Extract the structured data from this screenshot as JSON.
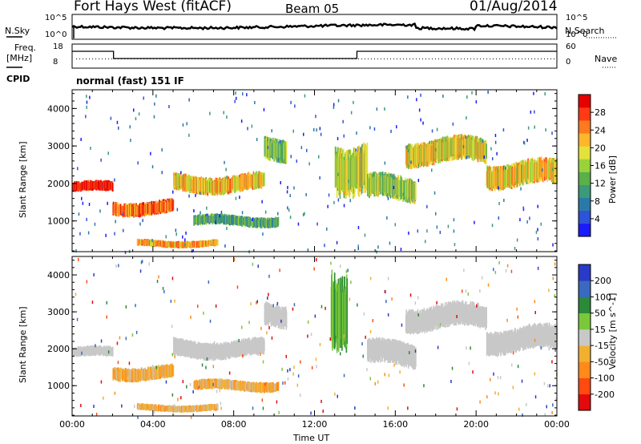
{
  "header": {
    "station": "Fort Hays West (fitACF)",
    "beam": "Beam 05",
    "date": "01/Aug/2014"
  },
  "top_panels": {
    "nsky_label": "N.Sky",
    "nsearch_label": "N.Search",
    "freq_label_1": "Freq.",
    "freq_label_2": "[MHz]",
    "nave_label": "Nave",
    "cpid_label": "CPID",
    "cpid_value": "normal (fast) 151 IF",
    "noise_ticks": {
      "top": "10^5",
      "bottom": "10^0"
    },
    "freq_ticks": {
      "top": "18",
      "bottom": "8"
    },
    "nave_ticks": {
      "top": "60",
      "bottom": "0"
    }
  },
  "chart_data": [
    {
      "type": "heatmap",
      "panel": "power",
      "title": "",
      "ylabel": "Slant Range [km]",
      "xlabel": "",
      "ylim": [
        180,
        4500
      ],
      "yticks": [
        "1000",
        "2000",
        "3000",
        "4000"
      ],
      "colorbar": {
        "label": "Power [dB]",
        "ticks": [
          "4",
          "8",
          "12",
          "16",
          "20",
          "24",
          "28"
        ],
        "colors": [
          "#1a1aff",
          "#2e52d8",
          "#2a7aa8",
          "#3a9a7a",
          "#5ab04a",
          "#9ad23a",
          "#e2e23a",
          "#ffb62a",
          "#ff7a1e",
          "#ff3a14",
          "#e60000"
        ]
      },
      "bands": [
        {
          "t": [
            0.0,
            2.0
          ],
          "range": [
            1750,
            2050
          ],
          "level": 0.95
        },
        {
          "t": [
            2.0,
            5.0
          ],
          "range": [
            1150,
            1550
          ],
          "level": 0.8
        },
        {
          "t": [
            5.0,
            9.5
          ],
          "range": [
            1750,
            2250
          ],
          "level": 0.65
        },
        {
          "t": [
            9.5,
            10.6
          ],
          "range": [
            2600,
            3250
          ],
          "level": 0.45
        },
        {
          "t": [
            3.2,
            7.2
          ],
          "range": [
            300,
            500
          ],
          "level": 0.7
        },
        {
          "t": [
            6.0,
            10.2
          ],
          "range": [
            850,
            1150
          ],
          "level": 0.35
        },
        {
          "t": [
            13.0,
            14.6
          ],
          "range": [
            1800,
            3200
          ],
          "level": 0.55
        },
        {
          "t": [
            14.6,
            17.0
          ],
          "range": [
            1500,
            2200
          ],
          "level": 0.5
        },
        {
          "t": [
            16.5,
            20.5
          ],
          "range": [
            2500,
            3200
          ],
          "level": 0.6
        },
        {
          "t": [
            20.5,
            24.0
          ],
          "range": [
            1900,
            2600
          ],
          "level": 0.65
        }
      ]
    },
    {
      "type": "heatmap",
      "panel": "velocity",
      "title": "",
      "ylabel": "Slant Range [km]",
      "xlabel": "Time UT",
      "ylim": [
        180,
        4500
      ],
      "yticks": [
        "1000",
        "2000",
        "3000",
        "4000"
      ],
      "xlim": [
        0,
        24
      ],
      "xticks": [
        "00:00",
        "04:00",
        "08:00",
        "12:00",
        "16:00",
        "20:00",
        "00:00"
      ],
      "colorbar": {
        "label": "Velocity [m s^-1]",
        "ticks": [
          "200",
          "100",
          "50",
          "15",
          "-15",
          "-50",
          "-100",
          "-200"
        ],
        "colors": [
          "#2a3ac8",
          "#3a6ac0",
          "#2a8a3a",
          "#7ac83a",
          "#c8c8c8",
          "#f2b030",
          "#ff8a1a",
          "#ff4a10",
          "#e20a0a"
        ]
      },
      "bands": [
        {
          "t": [
            0.0,
            2.0
          ],
          "range": [
            1750,
            2050
          ],
          "v": "grey"
        },
        {
          "t": [
            2.0,
            5.0
          ],
          "range": [
            1150,
            1550
          ],
          "v": "orange"
        },
        {
          "t": [
            5.0,
            9.5
          ],
          "range": [
            1750,
            2250
          ],
          "v": "grey"
        },
        {
          "t": [
            9.5,
            10.6
          ],
          "range": [
            2600,
            3250
          ],
          "v": "grey"
        },
        {
          "t": [
            3.2,
            7.2
          ],
          "range": [
            300,
            500
          ],
          "v": "orange"
        },
        {
          "t": [
            6.0,
            10.2
          ],
          "range": [
            850,
            1150
          ],
          "v": "orange"
        },
        {
          "t": [
            12.8,
            13.6
          ],
          "range": [
            2200,
            4400
          ],
          "v": "green"
        },
        {
          "t": [
            14.6,
            17.0
          ],
          "range": [
            1500,
            2200
          ],
          "v": "grey"
        },
        {
          "t": [
            16.5,
            20.5
          ],
          "range": [
            2500,
            3200
          ],
          "v": "grey"
        },
        {
          "t": [
            20.5,
            24.0
          ],
          "range": [
            1900,
            2600
          ],
          "v": "grey"
        }
      ]
    }
  ]
}
